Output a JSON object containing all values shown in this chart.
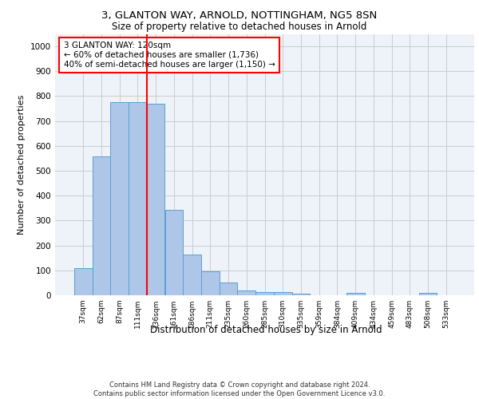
{
  "title1": "3, GLANTON WAY, ARNOLD, NOTTINGHAM, NG5 8SN",
  "title2": "Size of property relative to detached houses in Arnold",
  "xlabel": "Distribution of detached houses by size in Arnold",
  "ylabel": "Number of detached properties",
  "categories": [
    "37sqm",
    "62sqm",
    "87sqm",
    "111sqm",
    "136sqm",
    "161sqm",
    "186sqm",
    "211sqm",
    "235sqm",
    "260sqm",
    "285sqm",
    "310sqm",
    "335sqm",
    "359sqm",
    "384sqm",
    "409sqm",
    "434sqm",
    "459sqm",
    "483sqm",
    "508sqm",
    "533sqm"
  ],
  "values": [
    110,
    557,
    775,
    775,
    770,
    342,
    163,
    97,
    50,
    18,
    13,
    13,
    7,
    0,
    0,
    10,
    0,
    0,
    0,
    10,
    0
  ],
  "bar_color": "#aec6e8",
  "bar_edge_color": "#5a9fd4",
  "vline_x": 3.5,
  "vline_color": "red",
  "annotation_text": "3 GLANTON WAY: 120sqm\n← 60% of detached houses are smaller (1,736)\n40% of semi-detached houses are larger (1,150) →",
  "annotation_box_color": "white",
  "annotation_box_edge_color": "red",
  "ylim": [
    0,
    1050
  ],
  "yticks": [
    0,
    100,
    200,
    300,
    400,
    500,
    600,
    700,
    800,
    900,
    1000
  ],
  "grid_color": "#cccccc",
  "bg_color": "#eef2f9",
  "footer": "Contains HM Land Registry data © Crown copyright and database right 2024.\nContains public sector information licensed under the Open Government Licence v3.0."
}
